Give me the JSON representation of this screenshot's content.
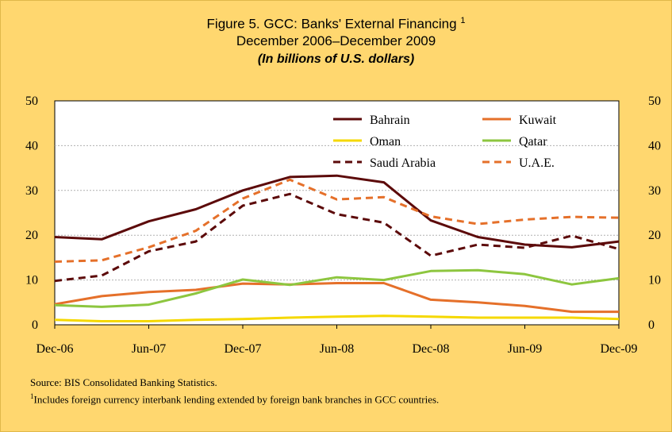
{
  "title": "Figure 5. GCC: Banks' External Financing",
  "title_superscript": "1",
  "subtitle": "December 2006–December  2009",
  "units_note": "(In billions of U.S. dollars)",
  "source": "Source: BIS Consolidated Banking Statistics.",
  "footnote_marker": "1",
  "footnote": "Includes foreign currency interbank lending extended by foreign bank branches in GCC countries.",
  "chart_data": {
    "type": "line",
    "x": [
      "Dec-06",
      "Mar-07",
      "Jun-07",
      "Sep-07",
      "Dec-07",
      "Mar-08",
      "Jun-08",
      "Sep-08",
      "Dec-08",
      "Mar-09",
      "Jun-09",
      "Sep-09",
      "Dec-09"
    ],
    "x_tick_labels": [
      "Dec-06",
      "Jun-07",
      "Dec-07",
      "Jun-08",
      "Dec-08",
      "Jun-09",
      "Dec-09"
    ],
    "ylim": [
      0,
      50
    ],
    "y_ticks": [
      0,
      10,
      20,
      30,
      40,
      50
    ],
    "grid": true,
    "legend_position": "top-right",
    "series": [
      {
        "name": "Bahrain",
        "color": "#5C0A0A",
        "dash": "solid",
        "values": [
          19.6,
          19.1,
          23.1,
          25.8,
          30.0,
          33.0,
          33.3,
          31.8,
          23.3,
          19.6,
          17.9,
          17.3,
          18.6
        ]
      },
      {
        "name": "Kuwait",
        "color": "#E5702A",
        "dash": "solid",
        "values": [
          4.6,
          6.4,
          7.3,
          7.8,
          9.2,
          9.0,
          9.3,
          9.3,
          5.6,
          5.0,
          4.2,
          2.9,
          2.9
        ]
      },
      {
        "name": "Oman",
        "color": "#F5D800",
        "dash": "solid",
        "values": [
          1.1,
          0.8,
          0.8,
          1.1,
          1.3,
          1.6,
          1.8,
          2.0,
          1.8,
          1.6,
          1.6,
          1.6,
          1.3
        ]
      },
      {
        "name": "Qatar",
        "color": "#8DC63F",
        "dash": "solid",
        "values": [
          4.4,
          4.0,
          4.5,
          7.0,
          10.1,
          8.9,
          10.6,
          10.0,
          12.0,
          12.2,
          11.3,
          9.0,
          10.4
        ]
      },
      {
        "name": "Saudi Arabia",
        "color": "#5C0A0A",
        "dash": "dashed",
        "values": [
          9.8,
          11.0,
          16.4,
          18.6,
          26.6,
          29.2,
          24.7,
          22.8,
          15.4,
          17.9,
          17.2,
          19.9,
          16.9
        ]
      },
      {
        "name": "U.A.E.",
        "color": "#E5702A",
        "dash": "dashed",
        "values": [
          14.1,
          14.4,
          17.3,
          21.0,
          28.2,
          32.4,
          28.0,
          28.5,
          24.2,
          22.5,
          23.5,
          24.1,
          23.9
        ]
      }
    ]
  }
}
